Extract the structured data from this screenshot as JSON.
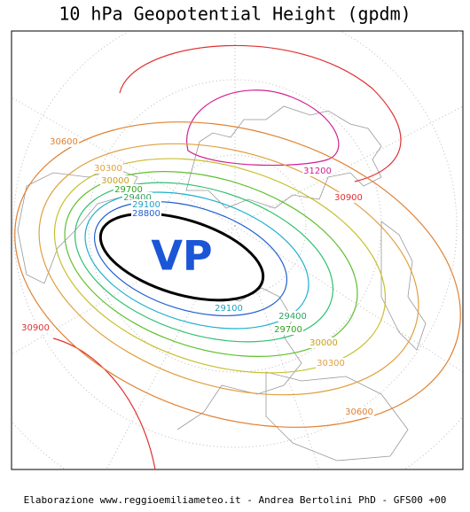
{
  "title": "10 hPa Geopotential Height (gpdm)",
  "vortex_label": "VP",
  "contour_labels": [
    "30600",
    "30300",
    "30000",
    "29700",
    "29400",
    "29100",
    "28800",
    "30900",
    "31200",
    "30900",
    "29100",
    "29400",
    "29700",
    "30000",
    "30300",
    "30600"
  ],
  "footer": "Elaborazione www.reggioemiliameteo.it - Andrea Bertolini PhD - GFS00 +00"
}
